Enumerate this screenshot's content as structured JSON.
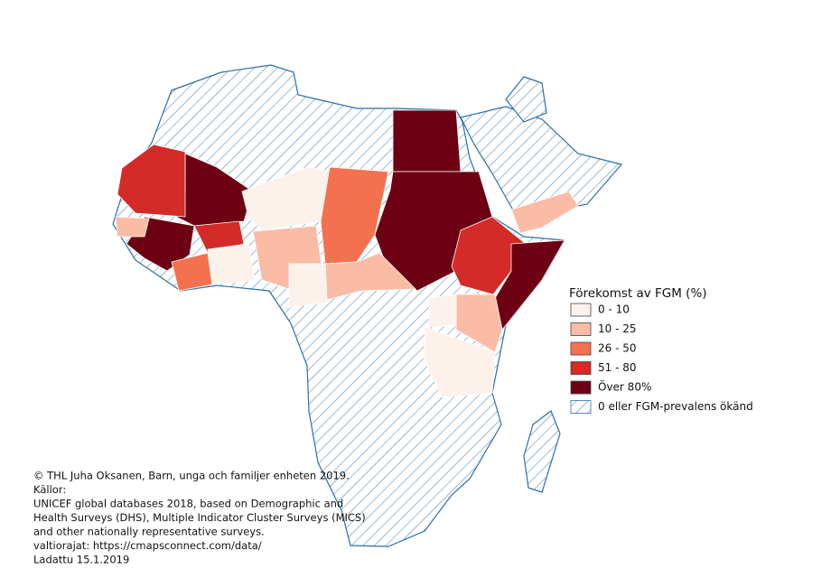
{
  "legend": {
    "title": "Förekomst av FGM (%)",
    "items": [
      {
        "label": "0 - 10",
        "color": "#fdf1ec"
      },
      {
        "label": "10 - 25",
        "color": "#fbbca6"
      },
      {
        "label": "26 - 50",
        "color": "#f4714f"
      },
      {
        "label": "51 - 80",
        "color": "#d42b28"
      },
      {
        "label": "Över 80%",
        "color": "#6d0012"
      },
      {
        "label": "0 eller FGM-prevalens ökänd"
      }
    ]
  },
  "credits": [
    "© THL Juha Oksanen, Barn, unga och familjer enheten 2019.",
    "Källor:",
    "UNICEF global databases 2018, based on Demographic and",
    "Health Surveys (DHS), Multiple Indicator Cluster Surveys (MICS)",
    "and other nationally representative surveys.",
    "valtiorajat: https://cmapsconnect.com/data/",
    "Ladattu 15.1.2019"
  ]
}
